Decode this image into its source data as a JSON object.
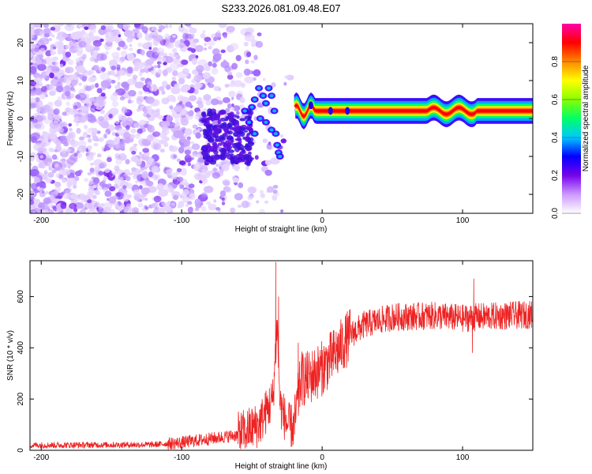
{
  "title": "S233.2026.081.09.48.E07",
  "chart_data": [
    {
      "type": "heatmap",
      "name": "spectrogram",
      "xlabel": "Height of straight line (km)",
      "ylabel": "Frequency (Hz)",
      "xlim": [
        -208,
        150
      ],
      "ylim": [
        -25,
        25
      ],
      "xticks": [
        -200,
        -100,
        0,
        100
      ],
      "yticks": [
        -20,
        -10,
        0,
        10,
        20
      ],
      "colorbar": {
        "label": "Normalized spectral amplitude",
        "range": [
          0,
          1
        ],
        "ticks": [
          0.0,
          0.2,
          0.4,
          0.6,
          0.8
        ],
        "tick_labels": [
          "0.0",
          "0.2",
          "0.4",
          "0.6",
          "0.8"
        ],
        "colors": [
          "#ffffff",
          "#cc99ff",
          "#7700ee",
          "#0000ff",
          "#00c8ff",
          "#00ff66",
          "#88ff00",
          "#ffff00",
          "#ff8800",
          "#ff0000",
          "#ff00aa"
        ]
      },
      "signal_band": {
        "x_start": -20,
        "x_end": 150,
        "center_freq_hz": 2,
        "half_width_hz": 1.5
      },
      "noise_region": {
        "x_start": -208,
        "x_end": -25
      }
    },
    {
      "type": "line",
      "name": "snr",
      "xlabel": "Height of straight line (km)",
      "ylabel": "SNR (10 * v/v)",
      "xlim": [
        -208,
        150
      ],
      "ylim": [
        0,
        740
      ],
      "xticks": [
        -200,
        -100,
        0,
        100
      ],
      "yticks": [
        0,
        200,
        400,
        600
      ],
      "color": "#ee2222",
      "trend": [
        {
          "x": -208,
          "y": 20
        },
        {
          "x": -120,
          "y": 22
        },
        {
          "x": -100,
          "y": 30
        },
        {
          "x": -80,
          "y": 45
        },
        {
          "x": -60,
          "y": 60
        },
        {
          "x": -45,
          "y": 100
        },
        {
          "x": -35,
          "y": 200
        },
        {
          "x": -32,
          "y": 500
        },
        {
          "x": -30,
          "y": 180
        },
        {
          "x": -25,
          "y": 100
        },
        {
          "x": -20,
          "y": 90
        },
        {
          "x": -15,
          "y": 280
        },
        {
          "x": -10,
          "y": 280
        },
        {
          "x": 0,
          "y": 320
        },
        {
          "x": 10,
          "y": 380
        },
        {
          "x": 20,
          "y": 450
        },
        {
          "x": 30,
          "y": 490
        },
        {
          "x": 50,
          "y": 520
        },
        {
          "x": 80,
          "y": 525
        },
        {
          "x": 100,
          "y": 515
        },
        {
          "x": 110,
          "y": 520
        },
        {
          "x": 150,
          "y": 530
        }
      ],
      "spikes": [
        {
          "x": -33,
          "y": 735
        },
        {
          "x": -31,
          "y": 600
        },
        {
          "x": -17,
          "y": 420
        },
        {
          "x": 108,
          "y": 670
        },
        {
          "x": 107,
          "y": 380
        }
      ]
    }
  ]
}
